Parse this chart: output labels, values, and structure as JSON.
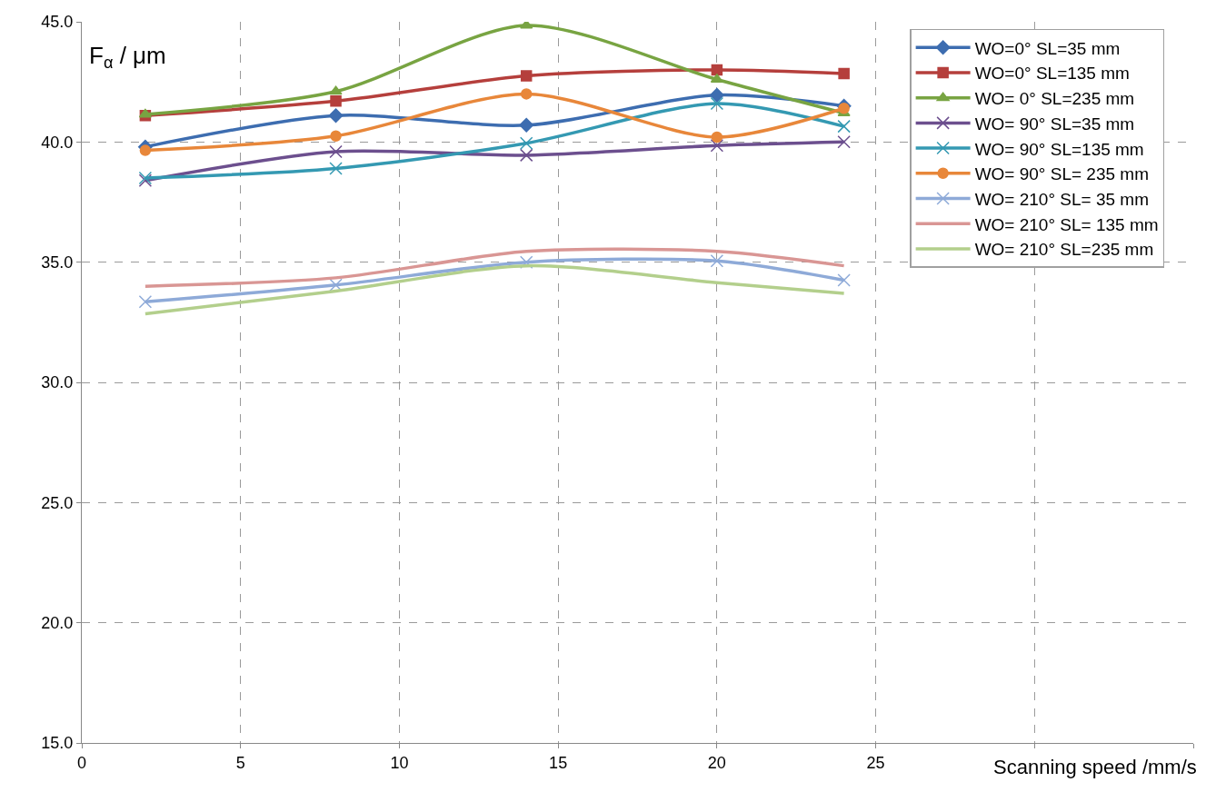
{
  "chart_data": {
    "type": "line",
    "xlabel": "Scanning speed /mm/s",
    "ylabel": "F$_{α}$ / μm",
    "x": [
      2,
      8,
      14,
      20,
      24
    ],
    "series": [
      {
        "name": "WO=0° SL=35 mm",
        "color": "#3d6db0",
        "marker": "diamond",
        "values": [
          39.8,
          41.1,
          40.7,
          41.95,
          41.5
        ]
      },
      {
        "name": "WO=0° SL=135 mm",
        "color": "#b53f3c",
        "marker": "square",
        "values": [
          41.1,
          41.7,
          42.75,
          43.0,
          42.85
        ]
      },
      {
        "name": "WO= 0° SL=235 mm",
        "color": "#78a442",
        "marker": "triangle",
        "values": [
          41.15,
          42.1,
          44.85,
          42.6,
          41.2
        ]
      },
      {
        "name": "WO= 90° SL=35 mm",
        "color": "#6c4f8e",
        "marker": "cross",
        "values": [
          38.4,
          39.6,
          39.45,
          39.85,
          40.0
        ]
      },
      {
        "name": "WO= 90° SL=135 mm",
        "color": "#3499b2",
        "marker": "cross",
        "values": [
          38.5,
          38.9,
          39.95,
          41.6,
          40.65
        ]
      },
      {
        "name": "WO= 90° SL= 235 mm",
        "color": "#e8873a",
        "marker": "circle",
        "values": [
          39.65,
          40.25,
          42.0,
          40.2,
          41.4
        ]
      },
      {
        "name": "WO= 210° SL= 35 mm",
        "color": "#8eaad8",
        "marker": "cross",
        "values": [
          33.35,
          34.05,
          35.0,
          35.05,
          34.25
        ]
      },
      {
        "name": "WO= 210° SL= 135 mm",
        "color": "#d99694",
        "marker": "none",
        "values": [
          34.0,
          34.35,
          35.45,
          35.45,
          34.85
        ]
      },
      {
        "name": "WO= 210° SL=235 mm",
        "color": "#b3cf8c",
        "marker": "none",
        "values": [
          32.85,
          33.8,
          34.85,
          34.15,
          33.7
        ]
      }
    ],
    "xlim": [
      0,
      35
    ],
    "xticks": [
      0,
      5,
      10,
      15,
      20,
      25,
      {
        "value": 30,
        "label": null
      },
      {
        "value": 35,
        "label": null
      }
    ],
    "ylim": [
      15,
      45
    ],
    "yticks": [
      {
        "value": 15,
        "label": "15.0"
      },
      {
        "value": 20,
        "label": "20.0"
      },
      {
        "value": 25,
        "label": "25.0"
      },
      {
        "value": 30,
        "label": "30.0"
      },
      {
        "value": 35,
        "label": "35.0"
      },
      {
        "value": 40,
        "label": "40.0"
      },
      {
        "value": 45,
        "label": "45.0"
      }
    ],
    "grid": true,
    "legend": "top right",
    "line_style": "solid"
  }
}
